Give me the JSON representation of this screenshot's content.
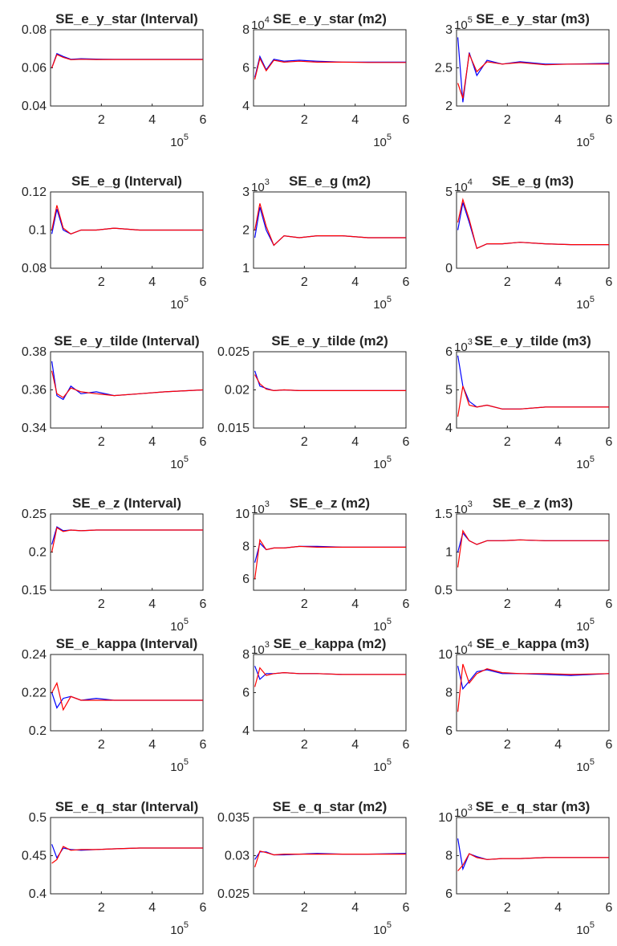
{
  "figure": {
    "rows": [
      {
        "panels": [
          {
            "title": "SE_e_y_star (Interval)",
            "multiplier_exponent": "",
            "yticks": [
              "0.04",
              "0.06",
              "0.08"
            ],
            "ylim": [
              0.04,
              0.08
            ],
            "series": [
              {
                "color": "#0000ff",
                "values": [
                  0.06,
                  0.0675,
                  0.066,
                  0.0645,
                  0.0648,
                  0.0646,
                  0.0645,
                  0.0645,
                  0.0645,
                  0.0645
                ]
              },
              {
                "color": "#ff0000",
                "values": [
                  0.06,
                  0.067,
                  0.0655,
                  0.0643,
                  0.0645,
                  0.0644,
                  0.0644,
                  0.0644,
                  0.0644,
                  0.0644
                ]
              }
            ]
          },
          {
            "title": "SE_e_y_star (m2)",
            "multiplier_exponent": "4",
            "yticks": [
              "4",
              "6",
              "8"
            ],
            "ylim": [
              4,
              8
            ],
            "series": [
              {
                "color": "#0000ff",
                "values": [
                  5.5,
                  6.6,
                  5.9,
                  6.45,
                  6.35,
                  6.4,
                  6.35,
                  6.3,
                  6.3,
                  6.3
                ]
              },
              {
                "color": "#ff0000",
                "values": [
                  5.4,
                  6.5,
                  5.85,
                  6.4,
                  6.3,
                  6.35,
                  6.3,
                  6.3,
                  6.28,
                  6.28
                ]
              }
            ]
          },
          {
            "title": "SE_e_y_star (m3)",
            "multiplier_exponent": "5",
            "yticks": [
              "2",
              "2.5",
              "3"
            ],
            "ylim": [
              2,
              3
            ],
            "series": [
              {
                "color": "#0000ff",
                "values": [
                  2.9,
                  2.05,
                  2.7,
                  2.4,
                  2.6,
                  2.55,
                  2.58,
                  2.55,
                  2.55,
                  2.56
                ]
              },
              {
                "color": "#ff0000",
                "values": [
                  2.3,
                  2.1,
                  2.68,
                  2.45,
                  2.58,
                  2.55,
                  2.57,
                  2.54,
                  2.55,
                  2.55
                ]
              }
            ]
          }
        ]
      },
      {
        "panels": [
          {
            "title": "SE_e_g (Interval)",
            "multiplier_exponent": "",
            "yticks": [
              "0.08",
              "0.1",
              "0.12"
            ],
            "ylim": [
              0.08,
              0.12
            ],
            "series": [
              {
                "color": "#0000ff",
                "values": [
                  0.098,
                  0.111,
                  0.1,
                  0.098,
                  0.1,
                  0.1,
                  0.101,
                  0.1,
                  0.1,
                  0.1
                ]
              },
              {
                "color": "#ff0000",
                "values": [
                  0.1,
                  0.113,
                  0.101,
                  0.098,
                  0.1,
                  0.1,
                  0.101,
                  0.1,
                  0.1,
                  0.1
                ]
              }
            ]
          },
          {
            "title": "SE_e_g (m2)",
            "multiplier_exponent": "3",
            "yticks": [
              "1",
              "2",
              "3"
            ],
            "ylim": [
              1,
              3
            ],
            "series": [
              {
                "color": "#0000ff",
                "values": [
                  1.8,
                  2.6,
                  2.0,
                  1.6,
                  1.85,
                  1.8,
                  1.85,
                  1.85,
                  1.8,
                  1.8
                ]
              },
              {
                "color": "#ff0000",
                "values": [
                  2.0,
                  2.7,
                  2.1,
                  1.6,
                  1.85,
                  1.8,
                  1.85,
                  1.85,
                  1.8,
                  1.8
                ]
              }
            ]
          },
          {
            "title": "SE_e_g (m3)",
            "multiplier_exponent": "4",
            "yticks": [
              "0",
              "5"
            ],
            "ylim": [
              0,
              5
            ],
            "series": [
              {
                "color": "#0000ff",
                "values": [
                  2.5,
                  4.3,
                  3.0,
                  1.3,
                  1.6,
                  1.6,
                  1.7,
                  1.6,
                  1.55,
                  1.55
                ]
              },
              {
                "color": "#ff0000",
                "values": [
                  3.0,
                  4.5,
                  3.2,
                  1.3,
                  1.6,
                  1.6,
                  1.7,
                  1.6,
                  1.55,
                  1.55
                ]
              }
            ]
          }
        ]
      },
      {
        "panels": [
          {
            "title": "SE_e_y_tilde (Interval)",
            "multiplier_exponent": "",
            "yticks": [
              "0.34",
              "0.36",
              "0.38"
            ],
            "ylim": [
              0.34,
              0.38
            ],
            "series": [
              {
                "color": "#0000ff",
                "values": [
                  0.375,
                  0.357,
                  0.355,
                  0.362,
                  0.358,
                  0.359,
                  0.357,
                  0.358,
                  0.359,
                  0.36
                ]
              },
              {
                "color": "#ff0000",
                "values": [
                  0.37,
                  0.358,
                  0.356,
                  0.361,
                  0.359,
                  0.358,
                  0.357,
                  0.358,
                  0.359,
                  0.36
                ]
              }
            ]
          },
          {
            "title": "SE_e_y_tilde (m2)",
            "multiplier_exponent": "",
            "yticks": [
              "0.015",
              "0.02",
              "0.025"
            ],
            "ylim": [
              0.015,
              0.025
            ],
            "series": [
              {
                "color": "#0000ff",
                "values": [
                  0.0225,
                  0.0205,
                  0.0202,
                  0.0199,
                  0.02,
                  0.0199,
                  0.0199,
                  0.0199,
                  0.0199,
                  0.0199
                ]
              },
              {
                "color": "#ff0000",
                "values": [
                  0.022,
                  0.0208,
                  0.0201,
                  0.0199,
                  0.02,
                  0.0199,
                  0.0199,
                  0.0199,
                  0.0199,
                  0.0199
                ]
              }
            ]
          },
          {
            "title": "SE_e_y_tilde (m3)",
            "multiplier_exponent": "3",
            "yticks": [
              "4",
              "5",
              "6"
            ],
            "ylim": [
              4,
              6
            ],
            "series": [
              {
                "color": "#0000ff",
                "values": [
                  5.9,
                  5.1,
                  4.7,
                  4.55,
                  4.6,
                  4.5,
                  4.5,
                  4.55,
                  4.55,
                  4.55
                ]
              },
              {
                "color": "#ff0000",
                "values": [
                  4.3,
                  5.1,
                  4.6,
                  4.55,
                  4.6,
                  4.5,
                  4.5,
                  4.55,
                  4.55,
                  4.55
                ]
              }
            ]
          }
        ]
      },
      {
        "panels": [
          {
            "title": "SE_e_z (Interval)",
            "multiplier_exponent": "",
            "yticks": [
              "0.15",
              "0.2",
              "0.25"
            ],
            "ylim": [
              0.15,
              0.25
            ],
            "series": [
              {
                "color": "#0000ff",
                "values": [
                  0.21,
                  0.233,
                  0.228,
                  0.229,
                  0.228,
                  0.229,
                  0.229,
                  0.229,
                  0.229,
                  0.229
                ]
              },
              {
                "color": "#ff0000",
                "values": [
                  0.2,
                  0.232,
                  0.227,
                  0.229,
                  0.228,
                  0.229,
                  0.229,
                  0.229,
                  0.229,
                  0.229
                ]
              }
            ]
          },
          {
            "title": "SE_e_z (m2)",
            "multiplier_exponent": "3",
            "yticks": [
              "6",
              "8",
              "10"
            ],
            "ylim": [
              5.3,
              10
            ],
            "series": [
              {
                "color": "#0000ff",
                "values": [
                  7.0,
                  8.2,
                  7.8,
                  7.9,
                  7.9,
                  8.0,
                  8.0,
                  7.95,
                  7.95,
                  7.95
                ]
              },
              {
                "color": "#ff0000",
                "values": [
                  6.0,
                  8.4,
                  7.8,
                  7.9,
                  7.9,
                  8.0,
                  7.95,
                  7.95,
                  7.95,
                  7.95
                ]
              }
            ]
          },
          {
            "title": "SE_e_z (m3)",
            "multiplier_exponent": "3",
            "yticks": [
              "0.5",
              "1",
              "1.5"
            ],
            "ylim": [
              0.5,
              1.5
            ],
            "series": [
              {
                "color": "#0000ff",
                "values": [
                  1.0,
                  1.25,
                  1.15,
                  1.1,
                  1.15,
                  1.15,
                  1.16,
                  1.15,
                  1.15,
                  1.15
                ]
              },
              {
                "color": "#ff0000",
                "values": [
                  0.8,
                  1.28,
                  1.15,
                  1.1,
                  1.15,
                  1.15,
                  1.16,
                  1.15,
                  1.15,
                  1.15
                ]
              }
            ]
          }
        ]
      },
      {
        "panels": [
          {
            "title": "SE_e_kappa (Interval)",
            "multiplier_exponent": "",
            "yticks": [
              "0.2",
              "0.22",
              "0.24"
            ],
            "ylim": [
              0.2,
              0.24
            ],
            "series": [
              {
                "color": "#0000ff",
                "values": [
                  0.22,
                  0.212,
                  0.217,
                  0.218,
                  0.216,
                  0.217,
                  0.216,
                  0.216,
                  0.216,
                  0.216
                ]
              },
              {
                "color": "#ff0000",
                "values": [
                  0.22,
                  0.225,
                  0.211,
                  0.218,
                  0.216,
                  0.216,
                  0.216,
                  0.216,
                  0.216,
                  0.216
                ]
              }
            ]
          },
          {
            "title": "SE_e_kappa (m2)",
            "multiplier_exponent": "3",
            "yticks": [
              "4",
              "6",
              "8"
            ],
            "ylim": [
              4,
              8
            ],
            "series": [
              {
                "color": "#0000ff",
                "values": [
                  7.4,
                  6.7,
                  7.0,
                  7.0,
                  7.05,
                  7.0,
                  7.0,
                  6.95,
                  6.95,
                  6.95
                ]
              },
              {
                "color": "#ff0000",
                "values": [
                  6.3,
                  7.3,
                  6.9,
                  7.0,
                  7.05,
                  7.0,
                  7.0,
                  6.95,
                  6.95,
                  6.95
                ]
              }
            ]
          },
          {
            "title": "SE_e_kappa (m3)",
            "multiplier_exponent": "4",
            "yticks": [
              "6",
              "8",
              "10"
            ],
            "ylim": [
              6,
              10
            ],
            "series": [
              {
                "color": "#0000ff",
                "values": [
                  9.4,
                  8.2,
                  8.6,
                  9.1,
                  9.2,
                  9.0,
                  9.0,
                  8.95,
                  8.9,
                  9.0
                ]
              },
              {
                "color": "#ff0000",
                "values": [
                  7.0,
                  9.5,
                  8.5,
                  9.0,
                  9.25,
                  9.05,
                  9.0,
                  9.0,
                  8.95,
                  9.0
                ]
              }
            ]
          }
        ]
      },
      {
        "panels": [
          {
            "title": "SE_e_q_star (Interval)",
            "multiplier_exponent": "",
            "yticks": [
              "0.4",
              "0.45",
              "0.5"
            ],
            "ylim": [
              0.4,
              0.5
            ],
            "series": [
              {
                "color": "#0000ff",
                "values": [
                  0.465,
                  0.447,
                  0.46,
                  0.458,
                  0.457,
                  0.458,
                  0.459,
                  0.46,
                  0.46,
                  0.46
                ]
              },
              {
                "color": "#ff0000",
                "values": [
                  0.44,
                  0.445,
                  0.462,
                  0.457,
                  0.458,
                  0.458,
                  0.459,
                  0.46,
                  0.46,
                  0.46
                ]
              }
            ]
          },
          {
            "title": "SE_e_q_star (m2)",
            "multiplier_exponent": "",
            "yticks": [
              "0.025",
              "0.03",
              "0.035"
            ],
            "ylim": [
              0.025,
              0.035
            ],
            "series": [
              {
                "color": "#0000ff",
                "values": [
                  0.0295,
                  0.0305,
                  0.0305,
                  0.0301,
                  0.0301,
                  0.0302,
                  0.0303,
                  0.0302,
                  0.0302,
                  0.0303
                ]
              },
              {
                "color": "#ff0000",
                "values": [
                  0.0285,
                  0.0306,
                  0.0304,
                  0.0301,
                  0.0302,
                  0.0302,
                  0.0302,
                  0.0302,
                  0.0302,
                  0.0302
                ]
              }
            ]
          },
          {
            "title": "SE_e_q_star (m3)",
            "multiplier_exponent": "3",
            "yticks": [
              "6",
              "8",
              "10"
            ],
            "ylim": [
              6,
              10
            ],
            "series": [
              {
                "color": "#0000ff",
                "values": [
                  8.9,
                  7.3,
                  8.1,
                  7.95,
                  7.8,
                  7.85,
                  7.85,
                  7.9,
                  7.9,
                  7.9
                ]
              },
              {
                "color": "#ff0000",
                "values": [
                  7.2,
                  7.5,
                  8.1,
                  7.9,
                  7.8,
                  7.85,
                  7.85,
                  7.9,
                  7.9,
                  7.9
                ]
              }
            ]
          }
        ]
      }
    ]
  },
  "chart_data": {
    "type": "line",
    "xticks": [
      "2",
      "4",
      "6"
    ],
    "x_multiplier": "10",
    "x_multiplier_exponent": "5",
    "xlim": [
      0,
      6
    ],
    "x": [
      0.05,
      0.25,
      0.5,
      0.8,
      1.2,
      1.8,
      2.5,
      3.5,
      4.5,
      6.0
    ],
    "panels_ref": "figure.rows"
  }
}
